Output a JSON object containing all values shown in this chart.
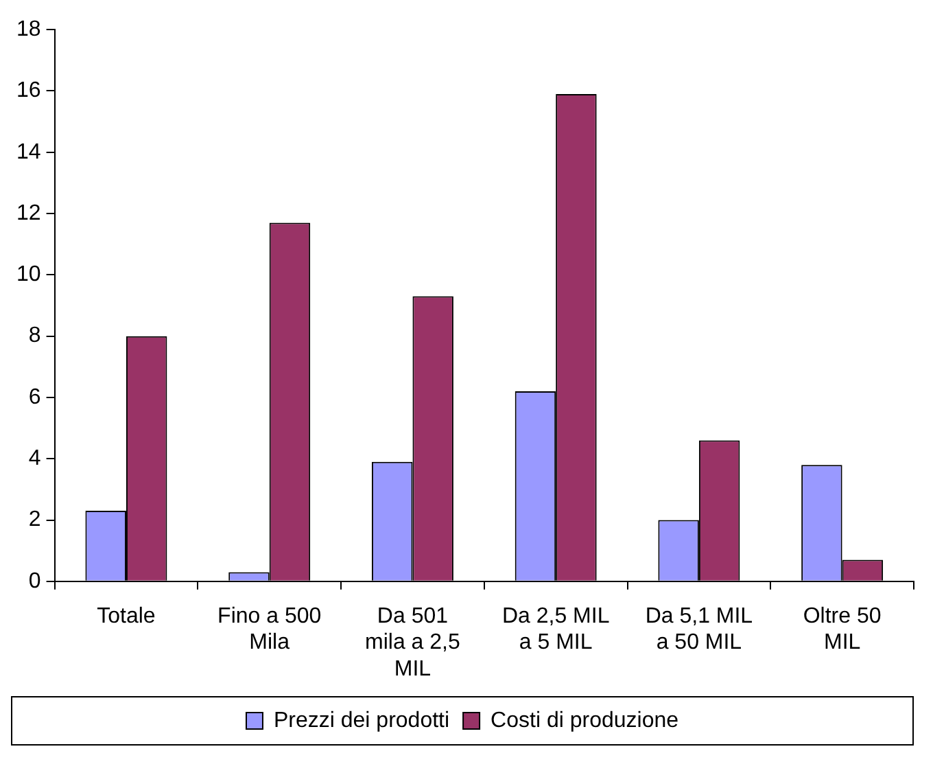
{
  "chart_data": {
    "type": "bar",
    "categories": [
      "Totale",
      "Fino a 500 Mila",
      "Da 501 mila a 2,5 MIL",
      "Da 2,5 MIL a 5 MIL",
      "Da 5,1 MIL a 50 MIL",
      "Oltre 50 MIL"
    ],
    "series": [
      {
        "name": "Prezzi dei prodotti",
        "color": "#9999ff",
        "values": [
          2.3,
          0.3,
          3.9,
          6.2,
          2.0,
          3.8
        ]
      },
      {
        "name": "Costi di produzione",
        "color": "#993366",
        "values": [
          8.0,
          11.7,
          9.3,
          15.9,
          4.6,
          0.7
        ]
      }
    ],
    "ylim": [
      0,
      18
    ],
    "yticks": [
      0,
      2,
      4,
      6,
      8,
      10,
      12,
      14,
      16,
      18
    ],
    "grid": false,
    "legend": "bottom"
  }
}
